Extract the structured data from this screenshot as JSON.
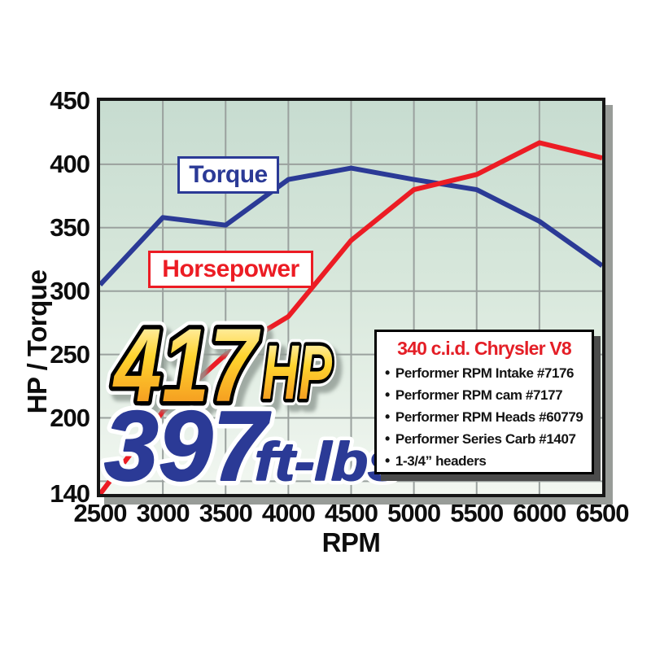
{
  "chart_data": {
    "type": "line",
    "title": "",
    "x_label": "RPM",
    "y_label": "HP / Torque",
    "xlim": [
      2500,
      6500
    ],
    "ylim": [
      140,
      450
    ],
    "x": [
      2500,
      3000,
      3500,
      4000,
      4500,
      5000,
      5500,
      6000,
      6500
    ],
    "x_ticks": [
      2500,
      3000,
      3500,
      4000,
      4500,
      5000,
      5500,
      6000,
      6500
    ],
    "y_ticks": [
      450,
      400,
      350,
      300,
      250,
      200,
      140
    ],
    "x_gridlines": [
      3000,
      3500,
      4000,
      4500,
      5000,
      5500,
      6000
    ],
    "y_gridlines": [
      400,
      350,
      300,
      250,
      200,
      150
    ],
    "grid": true,
    "legend_position": "inline-label-boxes",
    "series": [
      {
        "name": "Torque",
        "color": "#2b3a96",
        "values": [
          305,
          358,
          352,
          388,
          397,
          388,
          380,
          355,
          320
        ]
      },
      {
        "name": "Horsepower",
        "color": "#ec1c24",
        "values": [
          140,
          205,
          250,
          280,
          340,
          380,
          392,
          417,
          405
        ]
      }
    ]
  },
  "hero": {
    "hp_value": "417",
    "hp_unit": "HP",
    "torque_value": "397",
    "torque_unit": "ft-lbs"
  },
  "info_box": {
    "title": "340 c.i.d. Chrysler V8",
    "items": [
      "Performer RPM Intake #7176",
      "Performer RPM cam #7177",
      "Performer RPM Heads #60779",
      "Performer Series Carb #1407",
      "1-3/4” headers"
    ]
  },
  "colors": {
    "torque_line": "#2b3a96",
    "horsepower_line": "#ec1c24",
    "info_title": "#e41e26",
    "plot_bg_top": "#c7dcd0",
    "plot_bg_bottom": "#f2f7f1",
    "gridline": "#9aa19e",
    "gold_top": "#fffdea",
    "gold_mid": "#ffd42e",
    "gold_bottom": "#f1861b"
  }
}
